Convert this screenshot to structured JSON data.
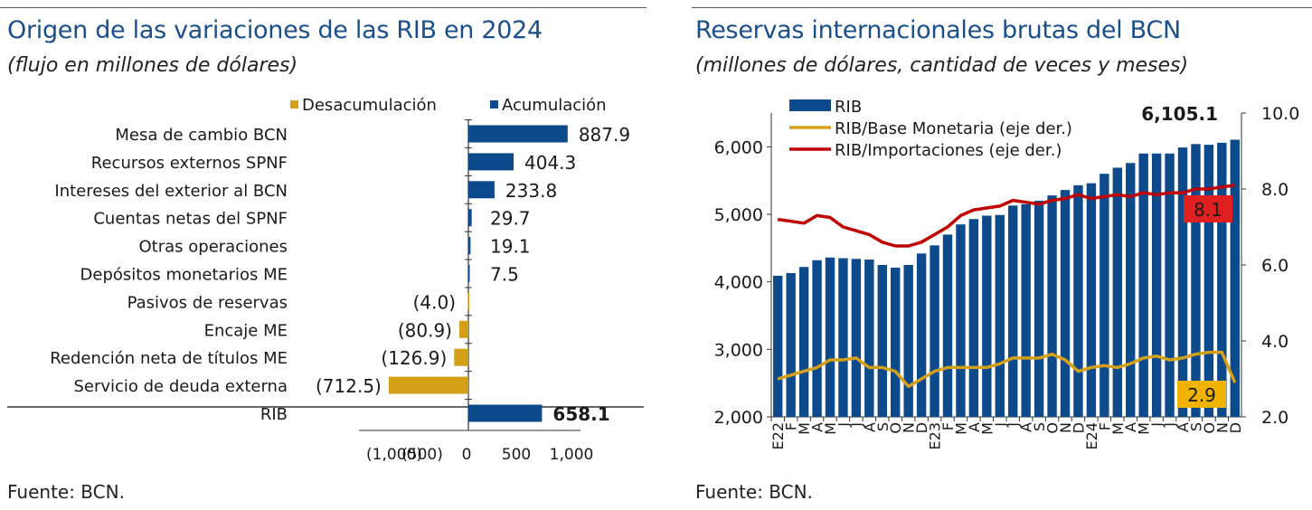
{
  "left": {
    "title": "Origen de las variaciones de las RIB en 2024",
    "subtitle": "(flujo en millones de dólares)",
    "source": "Fuente: BCN.",
    "chart_data": {
      "type": "bar",
      "orientation": "horizontal",
      "title": "Origen de las variaciones de las RIB en 2024",
      "legend": [
        {
          "name": "Desacumulación",
          "color": "#d4a017"
        },
        {
          "name": "Acumulación",
          "color": "#0d4a8c"
        }
      ],
      "legend_position": "top",
      "categories": [
        "Mesa de cambio BCN",
        "Recursos externos SPNF",
        "Intereses del exterior al BCN",
        "Cuentas netas del SPNF",
        "Otras operaciones",
        "Depósitos monetarios ME",
        "Pasivos de reservas",
        "Encaje ME",
        "Redención neta de títulos ME",
        "Servicio de deuda externa",
        "RIB"
      ],
      "values": [
        887.9,
        404.3,
        233.8,
        29.7,
        19.1,
        7.5,
        -4.0,
        -80.9,
        -126.9,
        -712.5,
        658.1
      ],
      "value_labels": [
        "887.9",
        "404.3",
        "233.8",
        "29.7",
        "19.1",
        "7.5",
        "(4.0)",
        "(80.9)",
        "(126.9)",
        "(712.5)",
        "658.1"
      ],
      "xlim": [
        -1000,
        1000
      ],
      "xticks": [
        -1000,
        -500,
        0,
        500,
        1000
      ],
      "xtick_labels": [
        "(1,000)",
        "(500)",
        "0",
        "500",
        "1,000"
      ]
    }
  },
  "right": {
    "title": "Reservas internacionales brutas del BCN",
    "subtitle": "(millones de dólares, cantidad de veces y meses)",
    "source": "Fuente: BCN.",
    "chart_data": {
      "type": "bar+line",
      "title": "Reservas internacionales brutas del BCN",
      "x_labels": [
        "E22",
        "F",
        "M",
        "A",
        "M",
        "J",
        "J",
        "A",
        "S",
        "O",
        "N",
        "D",
        "E23",
        "F",
        "M",
        "A",
        "M",
        "J",
        "J",
        "A",
        "S",
        "O",
        "N",
        "D",
        "E24",
        "F",
        "M",
        "A",
        "M",
        "J",
        "J",
        "A",
        "S",
        "O",
        "N",
        "D"
      ],
      "ylim_left": [
        2000,
        6500
      ],
      "yticks_left": [
        2000,
        3000,
        4000,
        5000,
        6000
      ],
      "ytick_labels_left": [
        "2,000",
        "3,000",
        "4,000",
        "5,000",
        "6,000"
      ],
      "ylim_right": [
        2.0,
        10.0
      ],
      "yticks_right": [
        2.0,
        4.0,
        6.0,
        8.0,
        10.0
      ],
      "ytick_labels_right": [
        "2.0",
        "4.0",
        "6.0",
        "8.0",
        "10.0"
      ],
      "legend_position": "top-left",
      "series": [
        {
          "name": "RIB",
          "type": "bar",
          "axis": "left",
          "color": "#0d4a8c",
          "values": [
            4090,
            4130,
            4220,
            4320,
            4360,
            4350,
            4340,
            4330,
            4250,
            4210,
            4250,
            4420,
            4540,
            4700,
            4850,
            4930,
            4980,
            4990,
            5130,
            5150,
            5200,
            5280,
            5360,
            5430,
            5460,
            5600,
            5690,
            5760,
            5900,
            5900,
            5900,
            5990,
            6040,
            6030,
            6060,
            6105.1
          ]
        },
        {
          "name": "RIB/Base Monetaria (eje der.)",
          "type": "line",
          "axis": "right",
          "color": "#d4a017",
          "values": [
            3.0,
            3.1,
            3.2,
            3.3,
            3.5,
            3.5,
            3.55,
            3.3,
            3.3,
            3.2,
            2.8,
            3.0,
            3.2,
            3.3,
            3.3,
            3.3,
            3.3,
            3.4,
            3.55,
            3.55,
            3.55,
            3.65,
            3.5,
            3.2,
            3.3,
            3.35,
            3.3,
            3.4,
            3.55,
            3.6,
            3.5,
            3.55,
            3.65,
            3.7,
            3.7,
            2.9
          ]
        },
        {
          "name": "RIB/Importaciones (eje der.)",
          "type": "line",
          "axis": "right",
          "color": "#c00000",
          "values": [
            7.2,
            7.15,
            7.1,
            7.3,
            7.25,
            7.0,
            6.9,
            6.8,
            6.6,
            6.5,
            6.5,
            6.6,
            6.8,
            7.0,
            7.3,
            7.45,
            7.5,
            7.55,
            7.7,
            7.65,
            7.6,
            7.7,
            7.75,
            7.85,
            7.75,
            7.8,
            7.85,
            7.8,
            7.9,
            7.85,
            7.9,
            7.9,
            8.0,
            8.0,
            8.05,
            8.1
          ]
        }
      ],
      "annotations": [
        {
          "text": "6,105.1",
          "series": "RIB"
        },
        {
          "text": "8.1",
          "series": "RIB/Importaciones (eje der.)",
          "color": "#e02020"
        },
        {
          "text": "2.9",
          "series": "RIB/Base Monetaria (eje der.)",
          "color": "#f0b400"
        }
      ]
    }
  }
}
